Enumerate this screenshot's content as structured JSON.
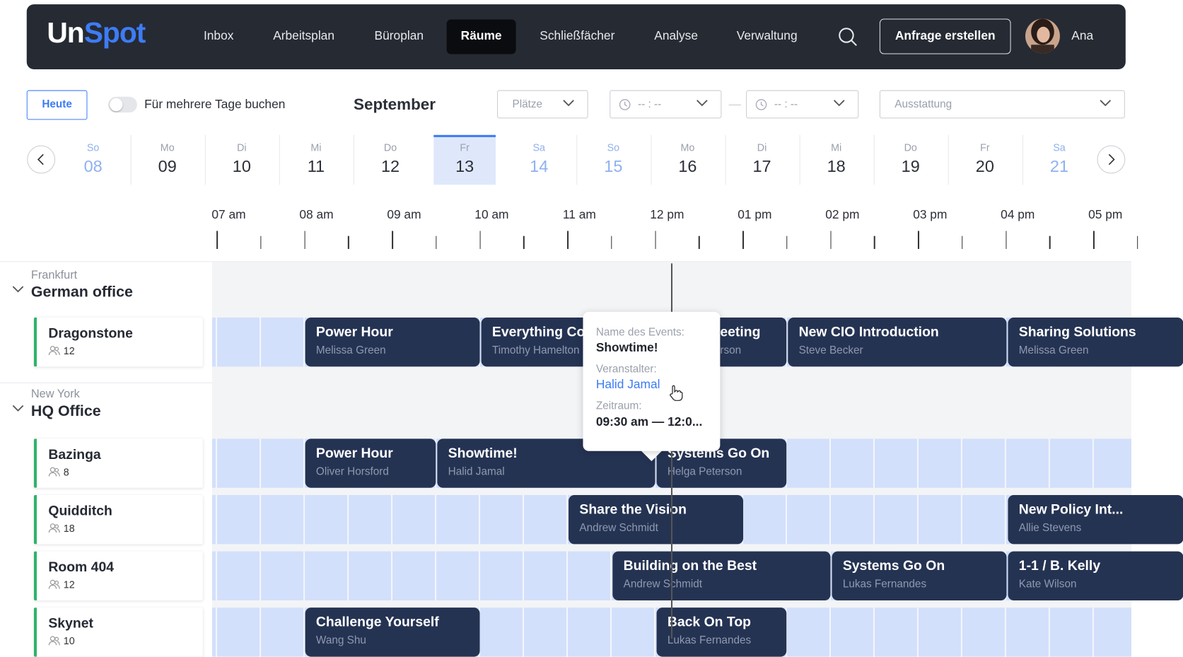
{
  "nav": {
    "logo": [
      "Un",
      "Spot"
    ],
    "items": [
      "Inbox",
      "Arbeitsplan",
      "Büroplan",
      "Räume",
      "Schließfächer",
      "Analyse",
      "Verwaltung"
    ],
    "active": 3,
    "button": "Anfrage erstellen",
    "user": "Ana"
  },
  "toolbar": {
    "today": "Heute",
    "multi_day": "Für mehrere Tage buchen",
    "month": "September",
    "seats": "Plätze",
    "time_from": "-- : --",
    "time_separator": "—",
    "time_to": "-- : --",
    "equipment": "Ausstattung"
  },
  "days": [
    {
      "weekday": "So",
      "day": "08",
      "weekend": true
    },
    {
      "weekday": "Mo",
      "day": "09",
      "weekend": false
    },
    {
      "weekday": "Di",
      "day": "10",
      "weekend": false
    },
    {
      "weekday": "Mi",
      "day": "11",
      "weekend": false
    },
    {
      "weekday": "Do",
      "day": "12",
      "weekend": false
    },
    {
      "weekday": "Fr",
      "day": "13",
      "weekend": false
    },
    {
      "weekday": "Sa",
      "day": "14",
      "weekend": true
    },
    {
      "weekday": "So",
      "day": "15",
      "weekend": true
    },
    {
      "weekday": "Mo",
      "day": "16",
      "weekend": false
    },
    {
      "weekday": "Di",
      "day": "17",
      "weekend": false
    },
    {
      "weekday": "Mi",
      "day": "18",
      "weekend": false
    },
    {
      "weekday": "Do",
      "day": "19",
      "weekend": false
    },
    {
      "weekday": "Fr",
      "day": "20",
      "weekend": false
    },
    {
      "weekday": "Sa",
      "day": "21",
      "weekend": true
    }
  ],
  "selected_day": 5,
  "hours": [
    "07 am",
    "08 am",
    "09 am",
    "10 am",
    "11 am",
    "12 pm",
    "01 pm",
    "02 pm",
    "03 pm",
    "04 pm",
    "05 pm"
  ],
  "locations": [
    {
      "city": "Frankfurt",
      "name": "German office",
      "rooms": [
        {
          "name": "Dragonstone",
          "capacity": 12,
          "events": [
            {
              "title": "Power Hour",
              "organizer": "Melissa Green"
            },
            {
              "title": "Everything Co",
              "organizer": "Timothy Hamelton"
            },
            {
              "title": "eeting",
              "organizer": "rson"
            },
            {
              "title": "New CIO Introduction",
              "organizer": "Steve Becker"
            },
            {
              "title": "Sharing Solutions",
              "organizer": "Melissa Green"
            }
          ]
        }
      ]
    },
    {
      "city": "New York",
      "name": "HQ Office",
      "rooms": [
        {
          "name": "Bazinga",
          "capacity": 8,
          "events": [
            {
              "title": "Power Hour",
              "organizer": "Oliver Horsford"
            },
            {
              "title": "Showtime!",
              "organizer": "Halid Jamal"
            },
            {
              "title": "Systems Go On",
              "organizer": "Helga Peterson"
            }
          ]
        },
        {
          "name": "Quidditch",
          "capacity": 18,
          "events": [
            {
              "title": "Share the Vision",
              "organizer": "Andrew Schmidt"
            },
            {
              "title": "New Policy Int...",
              "organizer": "Allie Stevens"
            }
          ]
        },
        {
          "name": "Room 404",
          "capacity": 12,
          "events": [
            {
              "title": "Building on the Best",
              "organizer": "Andrew Schmidt"
            },
            {
              "title": "Systems Go On",
              "organizer": "Lukas Fernandes"
            },
            {
              "title": "1-1 / B. Kelly",
              "organizer": "Kate Wilson"
            }
          ]
        },
        {
          "name": "Skynet",
          "capacity": 10,
          "events": [
            {
              "title": "Challenge Yourself",
              "organizer": "Wang Shu"
            },
            {
              "title": "Back On Top",
              "organizer": "Lukas Fernandes"
            }
          ]
        }
      ]
    }
  ],
  "tooltip": {
    "name_label": "Name des Events:",
    "name": "Showtime!",
    "organizer_label": "Veranstalter:",
    "organizer": "Halid Jamal",
    "period_label": "Zeitraum:",
    "period": "09:30 am — 12:0..."
  }
}
